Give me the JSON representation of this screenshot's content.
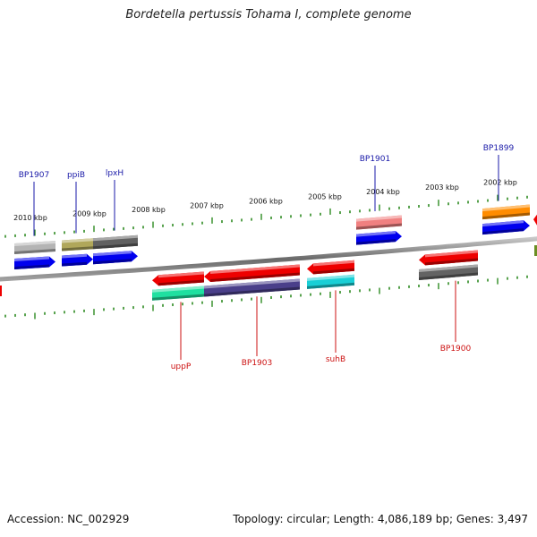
{
  "title": "Bordetella pertussis Tohama I, complete genome",
  "footer": {
    "accession": "Accession: NC_002929",
    "stats": "Topology: circular; Length: 4,086,189 bp; Genes: 3,497"
  },
  "colors": {
    "backbone": "#7f7f7f",
    "tick": "#2e8b22",
    "forward_label": "#1a1aa8",
    "reverse_label": "#cc1111",
    "scale_label": "#111111"
  },
  "scale": [
    {
      "label": "2010 kbp"
    },
    {
      "label": "2009 kbp"
    },
    {
      "label": "2008 kbp"
    },
    {
      "label": "2007 kbp"
    },
    {
      "label": "2006 kbp"
    },
    {
      "label": "2005 kbp"
    },
    {
      "label": "2004 kbp"
    },
    {
      "label": "2003 kbp"
    },
    {
      "label": "2002 kbp"
    }
  ],
  "genes": [
    {
      "strand": "forward",
      "color": "#b4b4b4",
      "label": ""
    },
    {
      "strand": "forward",
      "color": "#0000ee",
      "label": "BP1907"
    },
    {
      "strand": "forward",
      "color": "#b0a75a",
      "label": ""
    },
    {
      "strand": "forward",
      "color": "#0000ee",
      "label": "ppiB"
    },
    {
      "strand": "forward",
      "color": "#616161",
      "label": ""
    },
    {
      "strand": "forward",
      "color": "#0000ee",
      "label": "lpxH"
    },
    {
      "strand": "reverse",
      "color": "#ee0000",
      "label": ""
    },
    {
      "strand": "reverse",
      "color": "#1fe0a0",
      "label": "uppP"
    },
    {
      "strand": "reverse",
      "color": "#ee0000",
      "label": ""
    },
    {
      "strand": "reverse",
      "color": "#4a3f8a",
      "label": "BP1903"
    },
    {
      "strand": "reverse",
      "color": "#ee0000",
      "label": ""
    },
    {
      "strand": "reverse",
      "color": "#19cfd6",
      "label": "suhB"
    },
    {
      "strand": "forward",
      "color": "#f08080",
      "label": ""
    },
    {
      "strand": "forward",
      "color": "#0000ee",
      "label": "BP1901"
    },
    {
      "strand": "reverse",
      "color": "#ee0000",
      "label": ""
    },
    {
      "strand": "reverse",
      "color": "#636363",
      "label": "BP1900"
    },
    {
      "strand": "forward",
      "color": "#ff8c00",
      "label": ""
    },
    {
      "strand": "forward",
      "color": "#0000ee",
      "label": "BP1899"
    }
  ]
}
